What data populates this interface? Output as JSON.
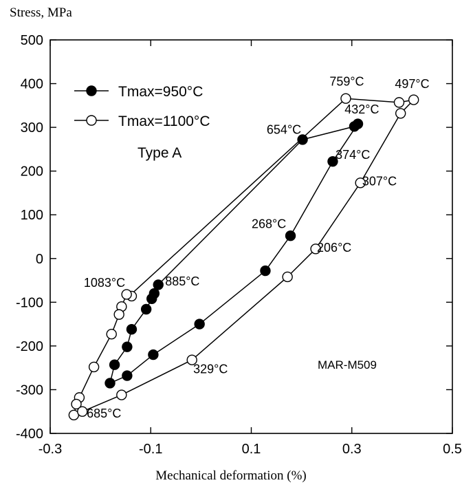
{
  "chart_data": {
    "type": "scatter",
    "ylabel": "Stress, MPa",
    "xlabel": "Mechanical deformation (%)",
    "xlim": [
      -0.3,
      0.5
    ],
    "ylim": [
      -400,
      500
    ],
    "xticks": [
      -0.3,
      -0.1,
      0.1,
      0.3,
      0.5
    ],
    "xtick_labels": [
      "-0.3",
      "-0.1",
      "0.1",
      "0.3",
      "0.5"
    ],
    "yticks": [
      -400,
      -300,
      -200,
      -100,
      0,
      100,
      200,
      300,
      400,
      500
    ],
    "ytick_labels": [
      "-400",
      "-300",
      "-200",
      "-100",
      "0",
      "100",
      "200",
      "300",
      "400",
      "500"
    ],
    "grid": false,
    "legend_position": "top-left",
    "annotation": "Type A",
    "material_label": "MAR-M509",
    "series": [
      {
        "name": "Tmax=950°C",
        "marker": "filled-circle",
        "x": [
          -0.085,
          -0.093,
          -0.098,
          -0.109,
          -0.138,
          -0.147,
          -0.172,
          -0.181,
          -0.147,
          -0.095,
          -0.003,
          0.128,
          0.178,
          0.262,
          0.312,
          0.305,
          0.202,
          -0.085
        ],
        "y": [
          -60,
          -80,
          -92,
          -116,
          -162,
          -202,
          -243,
          -285,
          -268,
          -220,
          -150,
          -28,
          52,
          222,
          308,
          302,
          272,
          -60
        ]
      },
      {
        "name": "Tmax=1100°C",
        "marker": "open-circle",
        "x": [
          -0.138,
          -0.148,
          -0.158,
          -0.163,
          -0.178,
          -0.213,
          -0.242,
          -0.248,
          -0.253,
          -0.236,
          -0.158,
          -0.018,
          0.172,
          0.228,
          0.317,
          0.397,
          0.423,
          0.394,
          0.288,
          -0.143
        ],
        "y": [
          -86,
          -82,
          -110,
          -128,
          -173,
          -248,
          -318,
          -333,
          -358,
          -350,
          -312,
          -232,
          -42,
          22,
          173,
          332,
          363,
          357,
          366,
          -86
        ]
      }
    ],
    "point_labels": [
      {
        "text": "759°C",
        "x": 0.29,
        "y": 395
      },
      {
        "text": "497°C",
        "x": 0.42,
        "y": 390
      },
      {
        "text": "432°C",
        "x": 0.32,
        "y": 332
      },
      {
        "text": "654°C",
        "x": 0.165,
        "y": 285
      },
      {
        "text": "374°C",
        "x": 0.302,
        "y": 228
      },
      {
        "text": "307°C",
        "x": 0.355,
        "y": 167
      },
      {
        "text": "268°C",
        "x": 0.135,
        "y": 70
      },
      {
        "text": "206°C",
        "x": 0.265,
        "y": 15
      },
      {
        "text": "1083°C",
        "x": -0.192,
        "y": -65
      },
      {
        "text": "885°C",
        "x": -0.037,
        "y": -62
      },
      {
        "text": "329°C",
        "x": 0.019,
        "y": -262
      },
      {
        "text": "685°C",
        "x": -0.193,
        "y": -364
      }
    ]
  }
}
